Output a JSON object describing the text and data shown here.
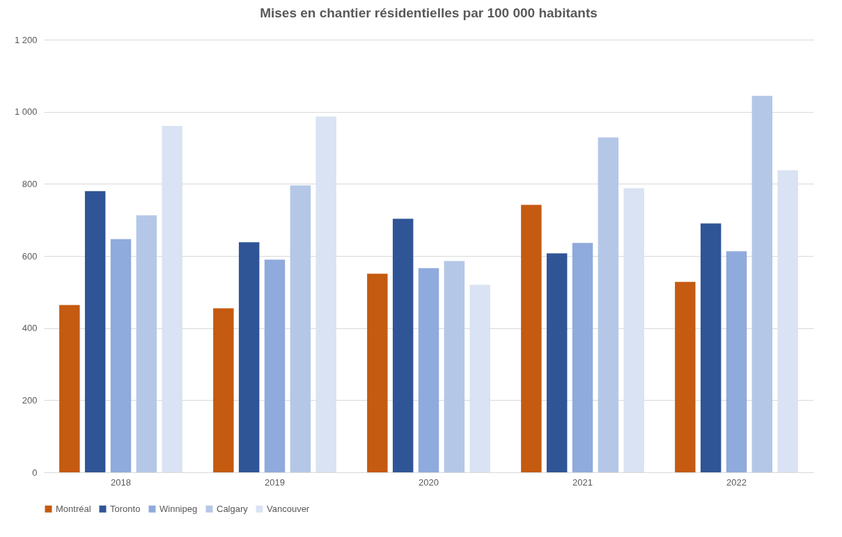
{
  "chart_data": {
    "type": "bar",
    "title": "Mises en chantier résidentielles par 100 000 habitants",
    "categories": [
      "2018",
      "2019",
      "2020",
      "2021",
      "2022"
    ],
    "series": [
      {
        "name": "Montréal",
        "color": "#c55a11",
        "values": [
          464,
          455,
          551,
          742,
          528
        ]
      },
      {
        "name": "Toronto",
        "color": "#2f5597",
        "values": [
          780,
          638,
          703,
          607,
          690
        ]
      },
      {
        "name": "Winnipeg",
        "color": "#8faadc",
        "values": [
          647,
          590,
          566,
          636,
          613
        ]
      },
      {
        "name": "Calgary",
        "color": "#b4c7e7",
        "values": [
          713,
          796,
          586,
          929,
          1044
        ]
      },
      {
        "name": "Vancouver",
        "color": "#dae3f3",
        "values": [
          961,
          987,
          520,
          788,
          838
        ]
      }
    ],
    "ylim": [
      0,
      1200
    ],
    "yticks": [
      0,
      200,
      400,
      600,
      800,
      {
        "value": 1000,
        "label": "1 000"
      },
      {
        "value": 1200,
        "label": "1 200"
      }
    ],
    "grid": "y",
    "legend": "bottom"
  }
}
